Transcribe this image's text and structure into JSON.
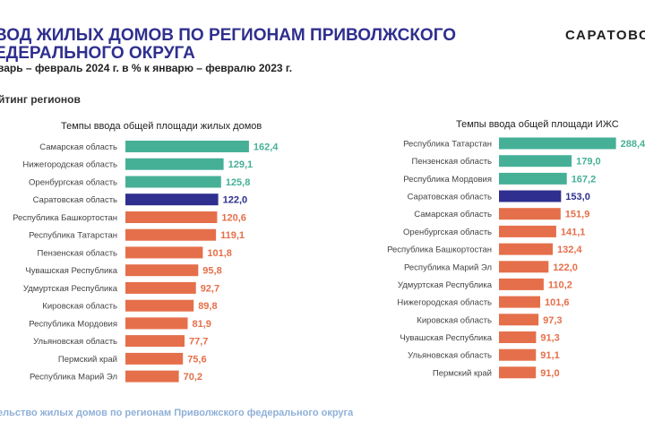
{
  "header": {
    "title_line1": "ВОД ЖИЛЫХ ДОМОВ ПО РЕГИОНАМ  ПРИВОЛЖСКОГО",
    "title_line2": "ЕДЕРАЛЬНОГО ОКРУГА",
    "subtitle": "варь – февраль 2024 г.  в % к январю – февралю 2023 г.",
    "logo_text": "САРАТОВС",
    "section_label": "йтинг регионов",
    "footer": "ельство жилых домов по регионам Приволжского федерального округа"
  },
  "colors": {
    "title": "#2f2f8f",
    "top3": "#46b097",
    "highlight": "#2e2f8e",
    "others": "#e56f4a",
    "footer": "#8fb0d8"
  },
  "chart_data": [
    {
      "type": "bar",
      "orientation": "horizontal",
      "title": "Темпы ввода общей площади жилых домов",
      "categories": [
        "Самарская область",
        "Нижегородская область",
        "Оренбургская область",
        "Саратовская область",
        "Республика Башкортостан",
        "Республика Татарстан",
        "Пензенская область",
        "Чувашская Республика",
        "Удмуртская Республика",
        "Кировская область",
        "Республика Мордовия",
        "Ульяновская область",
        "Пермский край",
        "Республика Марий Эл"
      ],
      "values": [
        162.4,
        129.1,
        125.8,
        122.0,
        120.6,
        119.1,
        101.8,
        95.8,
        92.7,
        89.8,
        81.9,
        77.7,
        75.6,
        70.2
      ],
      "labels": [
        "162,4",
        "129,1",
        "125,8",
        "122,0",
        "120,6",
        "119,1",
        "101,8",
        "95,8",
        "92,7",
        "89,8",
        "81,9",
        "77,7",
        "75,6",
        "70,2"
      ],
      "bar_colors": [
        "top3",
        "top3",
        "top3",
        "highlight",
        "others",
        "others",
        "others",
        "others",
        "others",
        "others",
        "others",
        "others",
        "others",
        "others"
      ],
      "grid": false,
      "legend": "none"
    },
    {
      "type": "bar",
      "orientation": "horizontal",
      "title": "Темпы ввода общей площади ИЖС",
      "categories": [
        "Республика Татарстан",
        "Пензенская область",
        "Республика Мордовия",
        "Саратовская область",
        "Самарская область",
        "Оренбургская область",
        "Республика Башкортостан",
        "Республика Марий Эл",
        "Удмуртская Республика",
        "Нижегородская область",
        "Кировская область",
        "Чувашская Республика",
        "Ульяновская область",
        "Пермский край"
      ],
      "values": [
        288.4,
        179.0,
        167.2,
        153.0,
        151.9,
        141.1,
        132.4,
        122.0,
        110.2,
        101.6,
        97.3,
        91.3,
        91.1,
        91.0
      ],
      "labels": [
        "288,4",
        "179,0",
        "167,2",
        "153,0",
        "151,9",
        "141,1",
        "132,4",
        "122,0",
        "110,2",
        "101,6",
        "97,3",
        "91,3",
        "91,1",
        "91,0"
      ],
      "bar_colors": [
        "top3",
        "top3",
        "top3",
        "highlight",
        "others",
        "others",
        "others",
        "others",
        "others",
        "others",
        "others",
        "others",
        "others",
        "others"
      ],
      "grid": false,
      "legend": "none"
    }
  ]
}
